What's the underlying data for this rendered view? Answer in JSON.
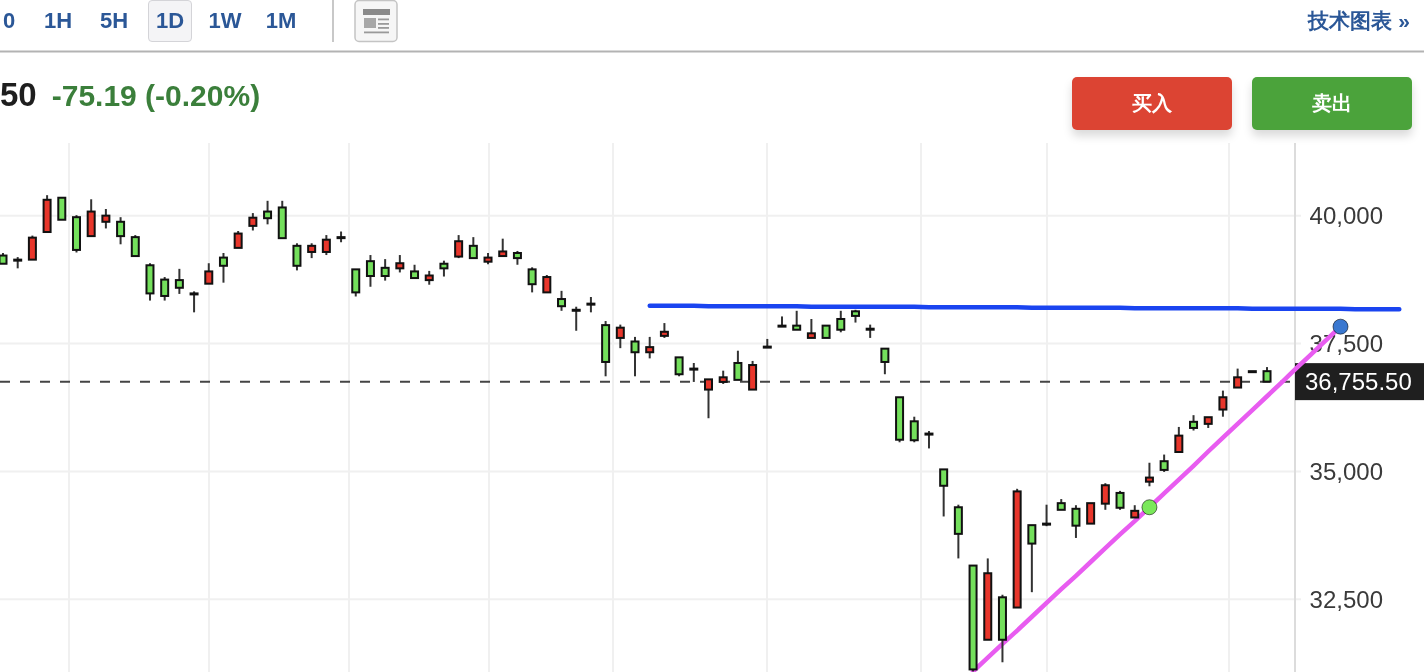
{
  "chart_data": {
    "type": "candlestick",
    "title": "50",
    "subtitle": "-75.19 (-0.20%)",
    "annotations": [
      "0",
      "1H",
      "5H",
      "1D",
      "1W",
      "1M",
      "技术图表 »",
      "买入",
      "卖出"
    ],
    "categories": [
      null,
      null,
      null,
      null,
      null,
      null,
      null,
      null,
      null,
      null,
      null,
      null,
      null,
      null,
      null,
      null,
      null,
      null,
      null,
      null,
      null,
      null,
      null,
      null,
      null,
      null,
      null,
      null,
      null,
      null,
      null,
      null,
      null,
      null,
      null,
      null,
      null,
      null,
      null,
      null,
      null,
      null,
      null,
      null,
      null,
      null,
      null,
      null,
      null,
      null,
      null,
      null,
      null,
      null,
      null,
      null,
      null,
      null,
      null,
      null,
      null,
      null,
      null,
      null,
      null,
      null,
      null,
      null,
      null,
      null,
      null,
      null,
      null,
      null,
      null,
      null,
      null,
      null,
      null,
      null,
      null,
      null,
      null,
      null,
      null,
      null,
      null,
      null,
      null,
      null,
      null,
      null,
      null,
      null,
      null,
      null,
      null
    ],
    "ohlc": [
      [
        39220,
        39270,
        39060,
        39060
      ],
      [
        39140,
        39190,
        38970,
        39140
      ],
      [
        39140,
        39610,
        39140,
        39570
      ],
      [
        39680,
        40400,
        39680,
        40310
      ],
      [
        40350,
        40350,
        39920,
        39920
      ],
      [
        39970,
        40010,
        39280,
        39330
      ],
      [
        39600,
        40320,
        39600,
        40080
      ],
      [
        39880,
        40130,
        39750,
        40000
      ],
      [
        39880,
        39970,
        39440,
        39600
      ],
      [
        39580,
        39620,
        39210,
        39210
      ],
      [
        39030,
        39070,
        38340,
        38480
      ],
      [
        38750,
        38800,
        38340,
        38430
      ],
      [
        38740,
        38960,
        38470,
        38590
      ],
      [
        38480,
        38520,
        38110,
        38480
      ],
      [
        38670,
        39070,
        38670,
        38910
      ],
      [
        39180,
        39270,
        38690,
        39020
      ],
      [
        39370,
        39700,
        39370,
        39650
      ],
      [
        39800,
        40050,
        39710,
        39960
      ],
      [
        40080,
        40290,
        39830,
        39950
      ],
      [
        40160,
        40290,
        39560,
        39560
      ],
      [
        39410,
        39460,
        38930,
        39020
      ],
      [
        39290,
        39460,
        39170,
        39410
      ],
      [
        39290,
        39620,
        39230,
        39530
      ],
      [
        39580,
        39690,
        39480,
        39580
      ],
      [
        38950,
        38950,
        38420,
        38500
      ],
      [
        39110,
        39230,
        38610,
        38820
      ],
      [
        38980,
        39150,
        38730,
        38820
      ],
      [
        38970,
        39230,
        38890,
        39070
      ],
      [
        38910,
        39040,
        38780,
        38780
      ],
      [
        38740,
        38920,
        38650,
        38830
      ],
      [
        39060,
        39120,
        38810,
        38970
      ],
      [
        39200,
        39620,
        39170,
        39500
      ],
      [
        39410,
        39580,
        39170,
        39170
      ],
      [
        39100,
        39270,
        39050,
        39180
      ],
      [
        39210,
        39550,
        39210,
        39300
      ],
      [
        39270,
        39310,
        39040,
        39170
      ],
      [
        38950,
        38990,
        38500,
        38660
      ],
      [
        38500,
        38840,
        38500,
        38800
      ],
      [
        38370,
        38530,
        38140,
        38230
      ],
      [
        38160,
        38220,
        37750,
        38160
      ],
      [
        38280,
        38410,
        38110,
        38280
      ],
      [
        37860,
        37940,
        36860,
        37140
      ],
      [
        37610,
        37870,
        37410,
        37810
      ],
      [
        37540,
        37630,
        36860,
        37330
      ],
      [
        37330,
        37630,
        37210,
        37430
      ],
      [
        37650,
        37900,
        37610,
        37730
      ],
      [
        37230,
        37230,
        36860,
        36900
      ],
      [
        37010,
        37120,
        36750,
        37010
      ],
      [
        36600,
        36800,
        36040,
        36800
      ],
      [
        36750,
        36970,
        36710,
        36840
      ],
      [
        37120,
        37360,
        36790,
        36790
      ],
      [
        36600,
        37160,
        36600,
        37080
      ],
      [
        37440,
        37590,
        37440,
        37440
      ],
      [
        37850,
        38030,
        37850,
        37850
      ],
      [
        37850,
        38140,
        37770,
        37770
      ],
      [
        37610,
        37980,
        37610,
        37700
      ],
      [
        37850,
        37850,
        37610,
        37610
      ],
      [
        37980,
        38140,
        37720,
        37770
      ],
      [
        38130,
        38160,
        37910,
        38040
      ],
      [
        37790,
        37870,
        37610,
        37790
      ],
      [
        37400,
        37400,
        36900,
        37140
      ],
      [
        36450,
        36450,
        35570,
        35620
      ],
      [
        35980,
        36070,
        35570,
        35610
      ],
      [
        35740,
        35790,
        35450,
        35740
      ],
      [
        35040,
        35040,
        34120,
        34720
      ],
      [
        34300,
        34350,
        33300,
        33780
      ],
      [
        33160,
        33160,
        31090,
        31130
      ],
      [
        31710,
        33300,
        31710,
        33010
      ],
      [
        32540,
        32590,
        31270,
        31710
      ],
      [
        32340,
        34660,
        32340,
        34610
      ],
      [
        33950,
        33950,
        32640,
        33590
      ],
      [
        33980,
        34350,
        33930,
        33980
      ],
      [
        34380,
        34460,
        34250,
        34250
      ],
      [
        34270,
        34340,
        33700,
        33940
      ],
      [
        33980,
        34380,
        33980,
        34380
      ],
      [
        34370,
        34770,
        34250,
        34730
      ],
      [
        34580,
        34620,
        34250,
        34290
      ],
      [
        34100,
        34340,
        34100,
        34230
      ],
      [
        34800,
        35170,
        34710,
        34880
      ],
      [
        35200,
        35330,
        34990,
        35030
      ],
      [
        35380,
        35870,
        35380,
        35700
      ],
      [
        35970,
        36100,
        35800,
        35850
      ],
      [
        35930,
        36060,
        35850,
        36060
      ],
      [
        36210,
        36580,
        36070,
        36450
      ],
      [
        36640,
        37010,
        36640,
        36840
      ],
      [
        36960,
        36960,
        36960,
        36960
      ],
      [
        36960,
        37040,
        36755.5,
        36755.5
      ],
      null,
      null,
      null,
      null,
      null,
      null,
      null,
      null,
      null,
      null
    ],
    "colors": [
      "#74e05c",
      "#222222",
      "#e8362b",
      "#e8362b",
      "#74e05c",
      "#74e05c",
      "#e8362b",
      "#e8362b",
      "#74e05c",
      "#74e05c",
      "#74e05c",
      "#74e05c",
      "#74e05c",
      "#222222",
      "#e8362b",
      "#74e05c",
      "#e8362b",
      "#e8362b",
      "#74e05c",
      "#74e05c",
      "#74e05c",
      "#e8362b",
      "#e8362b",
      "#222222",
      "#74e05c",
      "#74e05c",
      "#74e05c",
      "#e8362b",
      "#74e05c",
      "#e8362b",
      "#74e05c",
      "#e8362b",
      "#74e05c",
      "#e8362b",
      "#e8362b",
      "#74e05c",
      "#74e05c",
      "#e8362b",
      "#74e05c",
      "#222222",
      "#222222",
      "#74e05c",
      "#e8362b",
      "#74e05c",
      "#e8362b",
      "#e8362b",
      "#74e05c",
      "#222222",
      "#e8362b",
      "#e8362b",
      "#74e05c",
      "#e8362b",
      "#222222",
      "#222222",
      "#74e05c",
      "#e8362b",
      "#74e05c",
      "#74e05c",
      "#74e05c",
      "#222222",
      "#74e05c",
      "#74e05c",
      "#74e05c",
      "#222222",
      "#74e05c",
      "#74e05c",
      "#74e05c",
      "#e8362b",
      "#74e05c",
      "#e8362b",
      "#74e05c",
      "#222222",
      "#74e05c",
      "#74e05c",
      "#e8362b",
      "#e8362b",
      "#74e05c",
      "#e8362b",
      "#e8362b",
      "#74e05c",
      "#e8362b",
      "#74e05c",
      "#e8362b",
      "#e8362b",
      "#e8362b",
      "#222222",
      "#74e05c",
      null,
      null,
      null,
      null,
      null,
      null,
      null,
      null,
      null,
      null
    ],
    "series": [
      {
        "type": "line",
        "color": "#1a44f0",
        "values": [
          null,
          null,
          null,
          null,
          null,
          null,
          null,
          null,
          null,
          null,
          null,
          null,
          null,
          null,
          null,
          null,
          null,
          null,
          null,
          null,
          null,
          null,
          null,
          null,
          null,
          null,
          null,
          null,
          null,
          null,
          null,
          null,
          null,
          null,
          null,
          null,
          null,
          null,
          null,
          null,
          null,
          null,
          null,
          null,
          38240,
          38240,
          38240,
          38240,
          38230,
          38230,
          38230,
          38230,
          38230,
          38230,
          38230,
          38220,
          38220,
          38220,
          38220,
          38220,
          38220,
          38220,
          38220,
          38210,
          38210,
          38210,
          38210,
          38210,
          38210,
          38210,
          38200,
          38200,
          38200,
          38200,
          38200,
          38200,
          38200,
          38190,
          38190,
          38190,
          38190,
          38190,
          38190,
          38190,
          38190,
          38180,
          38180,
          38180,
          38180,
          38180,
          38180,
          38180,
          38170,
          38170,
          38170,
          38170,
          null
        ]
      },
      {
        "type": "line",
        "color": "#e85cf0",
        "values": [
          null,
          null,
          null,
          null,
          null,
          null,
          null,
          null,
          null,
          null,
          null,
          null,
          null,
          null,
          null,
          null,
          null,
          null,
          null,
          null,
          null,
          null,
          null,
          null,
          null,
          null,
          null,
          null,
          null,
          null,
          null,
          null,
          null,
          null,
          null,
          null,
          null,
          null,
          null,
          null,
          null,
          null,
          null,
          null,
          null,
          null,
          null,
          null,
          null,
          null,
          null,
          null,
          null,
          null,
          null,
          null,
          null,
          null,
          null,
          null,
          null,
          null,
          null,
          null,
          null,
          null,
          31090,
          31360,
          31630,
          31890,
          32160,
          32430,
          32700,
          32960,
          33230,
          33500,
          33770,
          34030,
          34300,
          34570,
          34840,
          35110,
          35390,
          35660,
          35930,
          36200,
          36470,
          36740,
          37020,
          37290,
          37560,
          37830,
          null,
          null,
          null,
          null,
          null
        ]
      },
      {
        "type": "scatter",
        "marker": "circle",
        "color": "#7ae85a",
        "values": [
          null,
          null,
          null,
          null,
          null,
          null,
          null,
          null,
          null,
          null,
          null,
          null,
          null,
          null,
          null,
          null,
          null,
          null,
          null,
          null,
          null,
          null,
          null,
          null,
          null,
          null,
          null,
          null,
          null,
          null,
          null,
          null,
          null,
          null,
          null,
          null,
          null,
          null,
          null,
          null,
          null,
          null,
          null,
          null,
          null,
          null,
          null,
          null,
          null,
          null,
          null,
          null,
          null,
          null,
          null,
          null,
          null,
          null,
          null,
          null,
          null,
          null,
          null,
          null,
          null,
          null,
          null,
          null,
          null,
          null,
          null,
          null,
          null,
          null,
          null,
          null,
          null,
          null,
          34300,
          null,
          null,
          null,
          null,
          null,
          null,
          null,
          null,
          null,
          null,
          null,
          null,
          null,
          null,
          null,
          null,
          null,
          null
        ]
      },
      {
        "type": "scatter",
        "marker": "circle",
        "color": "#3a78d0",
        "values": [
          null,
          null,
          null,
          null,
          null,
          null,
          null,
          null,
          null,
          null,
          null,
          null,
          null,
          null,
          null,
          null,
          null,
          null,
          null,
          null,
          null,
          null,
          null,
          null,
          null,
          null,
          null,
          null,
          null,
          null,
          null,
          null,
          null,
          null,
          null,
          null,
          null,
          null,
          null,
          null,
          null,
          null,
          null,
          null,
          null,
          null,
          null,
          null,
          null,
          null,
          null,
          null,
          null,
          null,
          null,
          null,
          null,
          null,
          null,
          null,
          null,
          null,
          null,
          null,
          null,
          null,
          null,
          null,
          null,
          null,
          null,
          null,
          null,
          null,
          null,
          null,
          null,
          null,
          null,
          null,
          null,
          null,
          null,
          null,
          null,
          null,
          null,
          null,
          null,
          null,
          null,
          37830,
          null,
          null,
          null,
          null,
          null
        ]
      }
    ],
    "ylim": [
      31070,
      41420
    ],
    "yticks": [
      {
        "value": 32500,
        "label": "32,500"
      },
      {
        "value": 35000,
        "label": "35,000"
      },
      {
        "value": 37500,
        "label": "37,500"
      },
      {
        "value": 40000,
        "label": "40,000"
      }
    ],
    "tick_labels": "y",
    "grid": true,
    "ref_lines": [
      {
        "axis": "y",
        "value": 36755.5,
        "label": "36,755.50",
        "color": "#444444",
        "line_style": "dashed"
      }
    ]
  }
}
